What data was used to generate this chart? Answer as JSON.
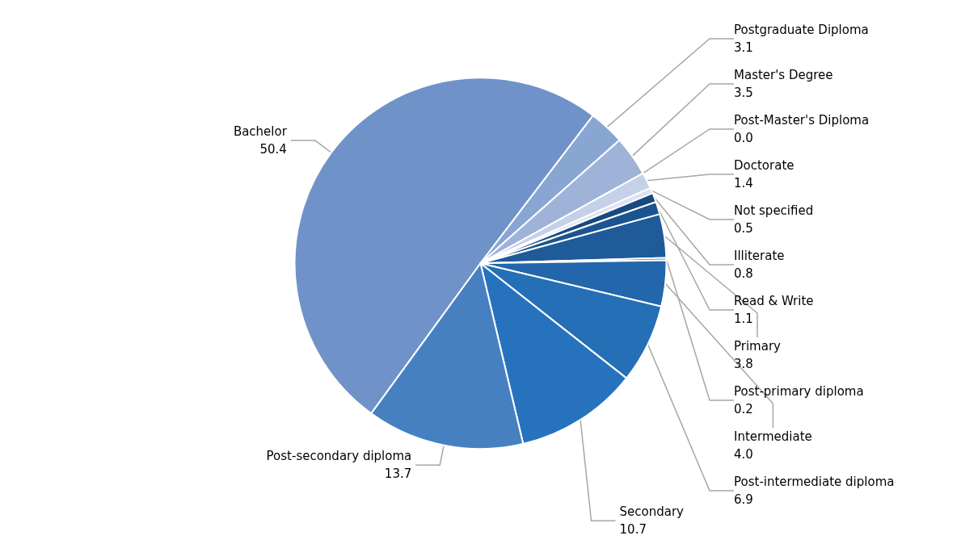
{
  "chart_data": {
    "type": "pie",
    "categories": [
      "Bachelor",
      "Postgraduate Diploma",
      "Master's Degree",
      "Post-Master's Diploma",
      "Doctorate",
      "Not specified",
      "Illiterate",
      "Read & Write",
      "Primary",
      "Post-primary diploma",
      "Intermediate",
      "Post-intermediate diploma",
      "Secondary",
      "Post-secondary diploma"
    ],
    "values": [
      50.4,
      3.1,
      3.5,
      0.0,
      1.4,
      0.5,
      0.8,
      1.1,
      3.8,
      0.2,
      4.0,
      6.9,
      10.7,
      13.7
    ],
    "value_labels": [
      "50.4",
      "3.1",
      "3.5",
      "0.0",
      "1.4",
      "0.5",
      "0.8",
      "1.1",
      "3.8",
      "0.2",
      "4.0",
      "6.9",
      "10.7",
      "13.7"
    ],
    "colors": [
      "#6f93c9",
      "#89a5d2",
      "#9fb3d9",
      "#b5c5e3",
      "#c4d1e9",
      "#dbe3f2",
      "#174a80",
      "#1c5490",
      "#1f5b98",
      "#2163a4",
      "#2266ab",
      "#246fb5",
      "#2672bd",
      "#4680c1"
    ],
    "legend": false
  }
}
